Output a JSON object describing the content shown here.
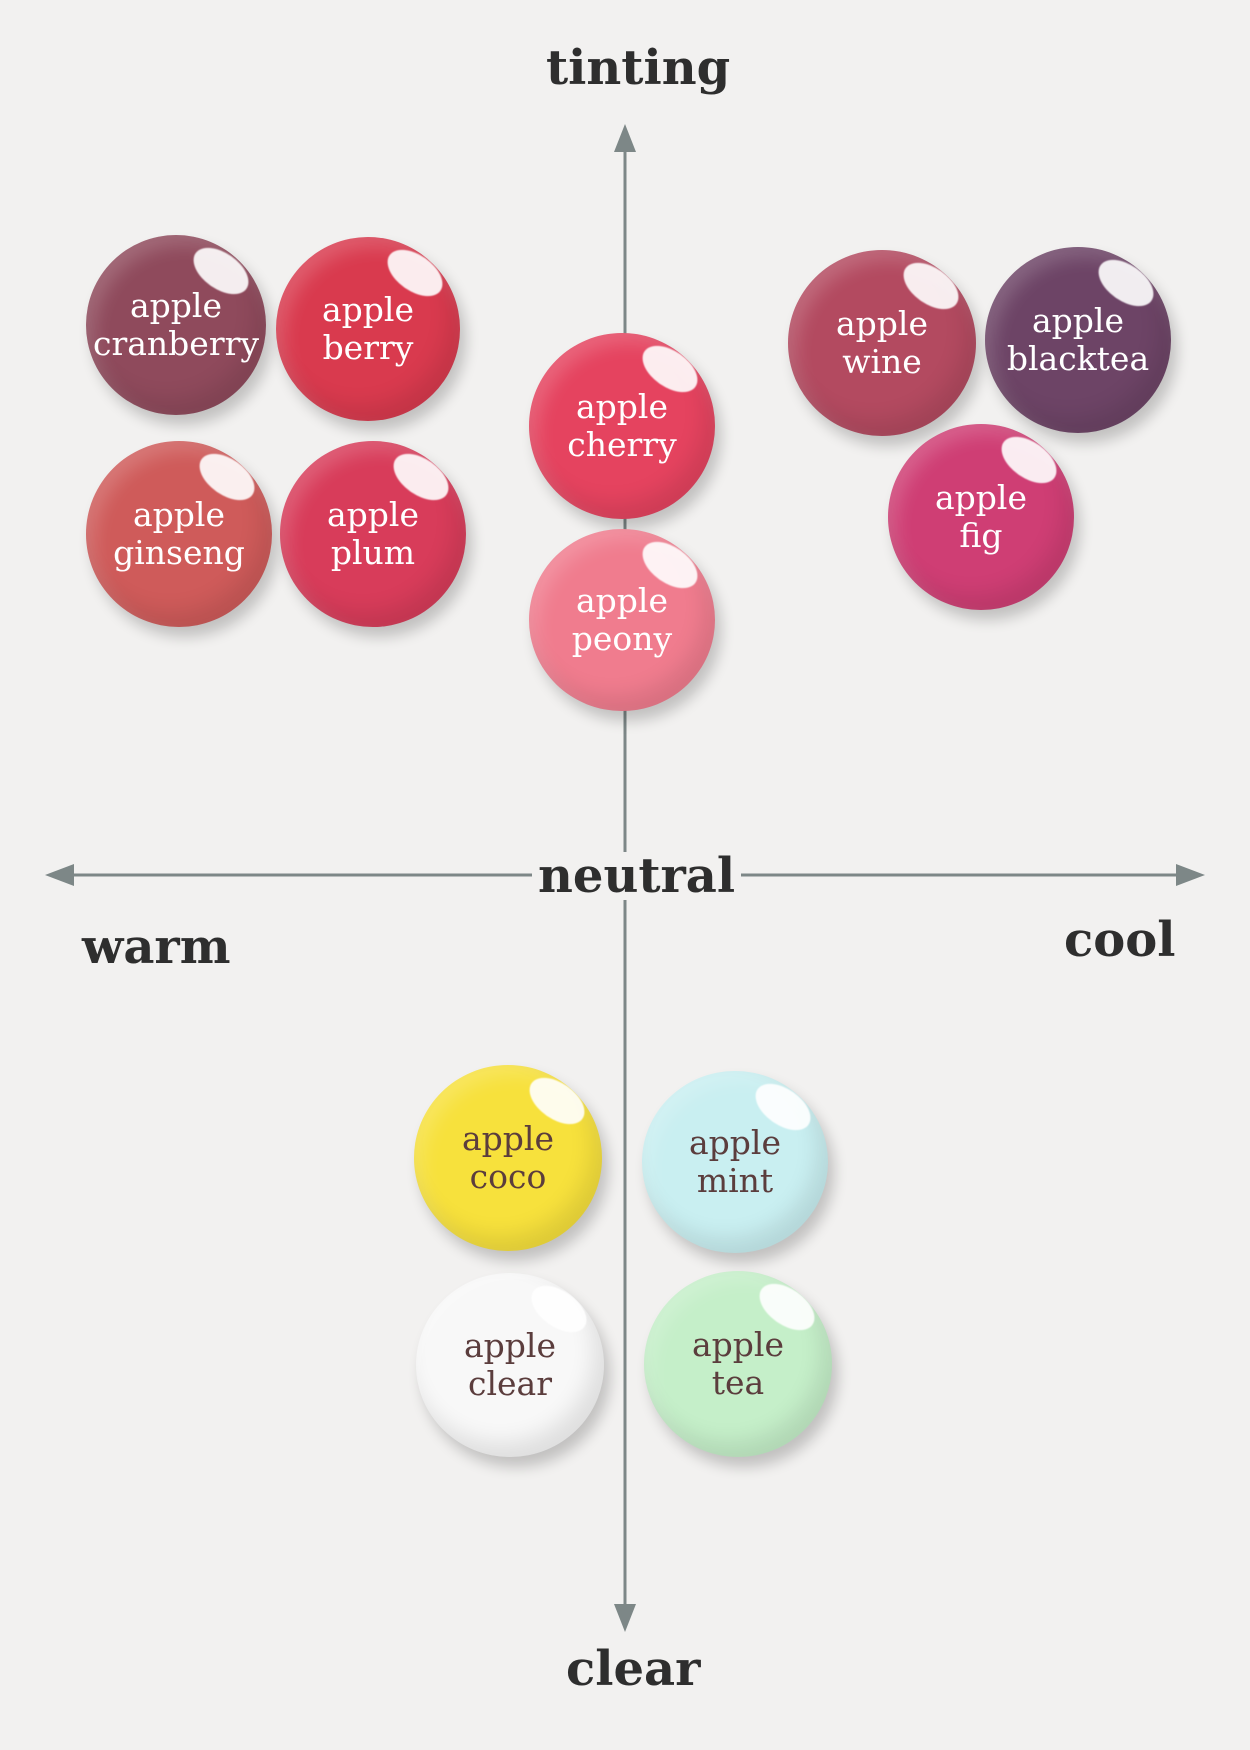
{
  "axes": {
    "top": "tinting",
    "bottom": "clear",
    "center": "neutral",
    "left": "warm",
    "right": "cool"
  },
  "products": [
    {
      "id": "cranberry",
      "line1": "apple",
      "line2": "cranberry",
      "color": "#8f4a5c",
      "text_color": "#ffffff"
    },
    {
      "id": "berry",
      "line1": "apple",
      "line2": "berry",
      "color": "#d93a4e",
      "text_color": "#ffffff"
    },
    {
      "id": "ginseng",
      "line1": "apple",
      "line2": "ginseng",
      "color": "#cf5b5a",
      "text_color": "#ffffff"
    },
    {
      "id": "plum",
      "line1": "apple",
      "line2": "plum",
      "color": "#d83c5a",
      "text_color": "#ffffff"
    },
    {
      "id": "cherry",
      "line1": "apple",
      "line2": "cherry",
      "color": "#e5435f",
      "text_color": "#ffffff"
    },
    {
      "id": "peony",
      "line1": "apple",
      "line2": "peony",
      "color": "#f07c8e",
      "text_color": "#ffffff"
    },
    {
      "id": "wine",
      "line1": "apple",
      "line2": "wine",
      "color": "#b34a60",
      "text_color": "#ffffff"
    },
    {
      "id": "blacktea",
      "line1": "apple",
      "line2": "blacktea",
      "color": "#6d4466",
      "text_color": "#ffffff"
    },
    {
      "id": "fig",
      "line1": "apple",
      "line2": "fig",
      "color": "#cf3e74",
      "text_color": "#ffffff"
    },
    {
      "id": "coco",
      "line1": "apple",
      "line2": "coco",
      "color": "#f7e13c",
      "text_color": "#5b3d3d"
    },
    {
      "id": "mint",
      "line1": "apple",
      "line2": "mint",
      "color": "#c9eff1",
      "text_color": "#5b3d3d"
    },
    {
      "id": "clear",
      "line1": "apple",
      "line2": "clear",
      "color": "#f8f8f8",
      "text_color": "#5b3d3d"
    },
    {
      "id": "tea",
      "line1": "apple",
      "line2": "tea",
      "color": "#c5efc9",
      "text_color": "#5b3d3d"
    }
  ],
  "colors": {
    "background": "#f2f1f0",
    "axis": "#7d8787",
    "label": "#2e2e2e"
  }
}
